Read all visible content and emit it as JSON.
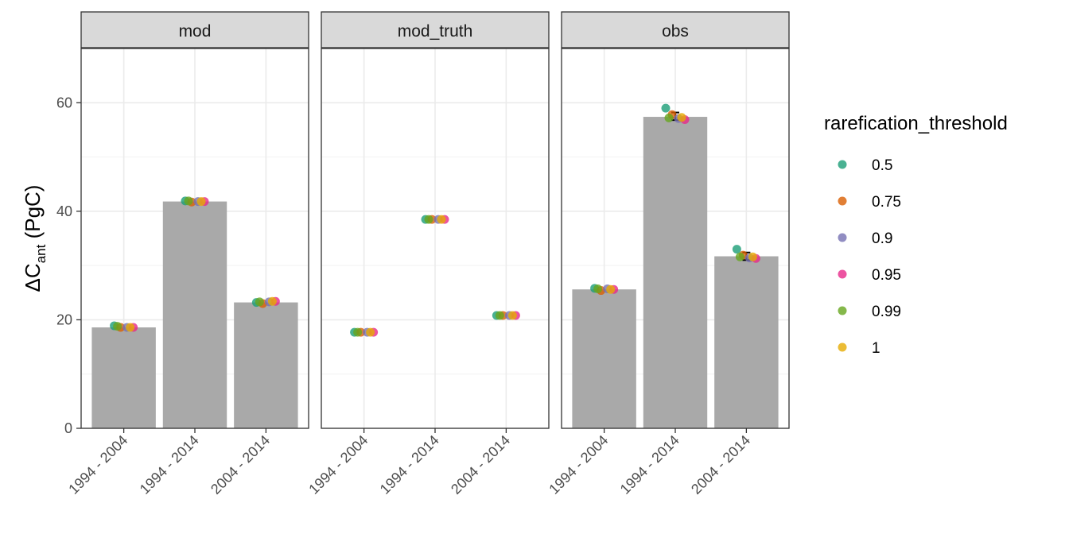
{
  "chart_data": {
    "type": "bar",
    "ylabel": {
      "main": "ΔC",
      "sub": "ant",
      "unit": " (PgC)"
    },
    "ylim": [
      0,
      70
    ],
    "yticks": [
      0,
      20,
      40,
      60
    ],
    "categories": [
      "1994 - 2004",
      "1994 - 2014",
      "2004 - 2014"
    ],
    "legend": {
      "title": "rarefication_threshold",
      "position": "right",
      "entries": [
        {
          "label": "0.5",
          "color": "#1b9e77"
        },
        {
          "label": "0.75",
          "color": "#d95f02"
        },
        {
          "label": "0.9",
          "color": "#7570b3"
        },
        {
          "label": "0.95",
          "color": "#e7298a"
        },
        {
          "label": "0.99",
          "color": "#66a61e"
        },
        {
          "label": "1",
          "color": "#e6ab02"
        }
      ]
    },
    "bar_color": "#a9a9a9",
    "panels": [
      {
        "name": "mod",
        "bars": [
          18.6,
          41.8,
          23.2
        ],
        "points": [
          [
            18.9,
            18.6,
            18.6,
            18.6,
            18.8,
            18.6
          ],
          [
            41.9,
            41.7,
            41.8,
            41.8,
            41.9,
            41.8
          ],
          [
            23.2,
            23.0,
            23.3,
            23.4,
            23.3,
            23.4
          ]
        ],
        "errors": [
          null,
          null,
          null
        ]
      },
      {
        "name": "mod_truth",
        "bars": [
          null,
          null,
          null
        ],
        "points": [
          [
            17.7,
            17.7,
            17.7,
            17.7,
            17.7,
            17.7
          ],
          [
            38.5,
            38.5,
            38.5,
            38.5,
            38.5,
            38.5
          ],
          [
            20.8,
            20.8,
            20.8,
            20.8,
            20.8,
            20.8
          ]
        ],
        "errors": [
          null,
          null,
          null
        ]
      },
      {
        "name": "obs",
        "bars": [
          25.6,
          57.4,
          31.7
        ],
        "points": [
          [
            25.8,
            25.4,
            25.7,
            25.6,
            25.7,
            25.6
          ],
          [
            59.0,
            57.8,
            57.1,
            56.9,
            57.2,
            57.3
          ],
          [
            33.0,
            31.9,
            31.4,
            31.3,
            31.6,
            31.6
          ]
        ],
        "errors": [
          null,
          [
            56.8,
            58.2
          ],
          [
            31.0,
            32.4
          ]
        ]
      }
    ]
  }
}
